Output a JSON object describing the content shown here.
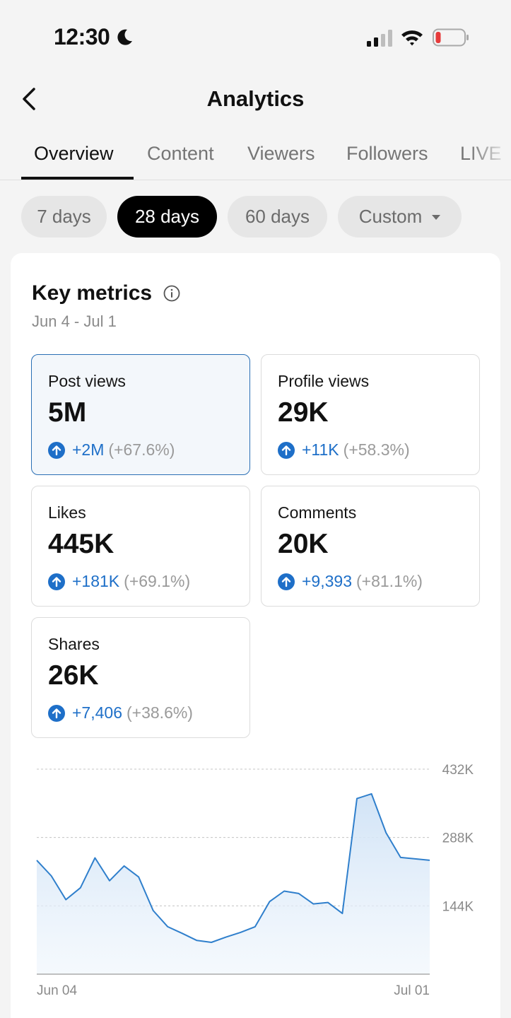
{
  "status_bar": {
    "time": "12:30",
    "moon_icon": "moon-icon",
    "signal_icon": "cellular-signal-icon",
    "wifi_icon": "wifi-icon",
    "battery_icon": "battery-low-icon"
  },
  "header": {
    "title": "Analytics",
    "back_icon": "chevron-left-icon"
  },
  "tabs": [
    {
      "label": "Overview",
      "active": true
    },
    {
      "label": "Content",
      "active": false
    },
    {
      "label": "Viewers",
      "active": false
    },
    {
      "label": "Followers",
      "active": false
    },
    {
      "label": "LIVE",
      "active": false
    }
  ],
  "period_filters": [
    {
      "label": "7 days",
      "active": false
    },
    {
      "label": "28 days",
      "active": true
    },
    {
      "label": "60 days",
      "active": false
    },
    {
      "label": "Custom",
      "active": false,
      "dropdown": true
    }
  ],
  "key_metrics": {
    "title": "Key metrics",
    "info_icon": "info-icon",
    "date_range": "Jun 4 - Jul 1",
    "metrics": [
      {
        "label": "Post views",
        "value": "5M",
        "delta": "+2M",
        "pct": "(+67.6%)",
        "selected": true
      },
      {
        "label": "Profile views",
        "value": "29K",
        "delta": "+11K",
        "pct": "(+58.3%)",
        "selected": false
      },
      {
        "label": "Likes",
        "value": "445K",
        "delta": "+181K",
        "pct": "(+69.1%)",
        "selected": false
      },
      {
        "label": "Comments",
        "value": "20K",
        "delta": "+9,393",
        "pct": "(+81.1%)",
        "selected": false
      },
      {
        "label": "Shares",
        "value": "26K",
        "delta": "+7,406",
        "pct": "(+38.6%)",
        "selected": false
      }
    ]
  },
  "colors": {
    "accent": "#1e6fc8",
    "chart_line": "#2f7fcc",
    "chart_fill": "#d6e7f7",
    "selected_border": "#2a6fb5"
  },
  "chart_data": {
    "type": "area",
    "x_start": "Jun 04",
    "x_end": "Jul 01",
    "x_tick_labels": [
      "Jun 04",
      "Jul 01"
    ],
    "y_tick_labels": [
      "432K",
      "288K",
      "144K"
    ],
    "y_ticks": [
      432000,
      288000,
      144000
    ],
    "ylim": [
      0,
      432000
    ],
    "grid": true,
    "series": [
      {
        "values": [
          240000,
          207000,
          157000,
          182000,
          245000,
          197000,
          228000,
          205000,
          134000,
          100000,
          86000,
          71000,
          67000,
          78000,
          88000,
          100000,
          153000,
          175000,
          170000,
          148000,
          151000,
          128000,
          370000,
          380000,
          298000,
          246000,
          243000,
          240000
        ]
      }
    ]
  }
}
